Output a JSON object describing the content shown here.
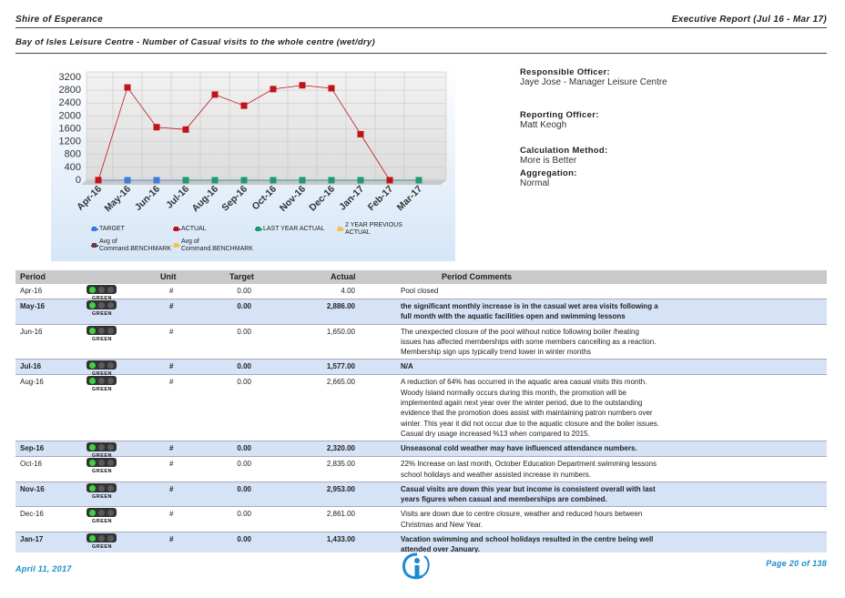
{
  "header": {
    "organisation": "Shire of Esperance",
    "report": "Executive Report (Jul 16 - Mar 17)"
  },
  "subtitle": "Bay of Isles Leisure Centre - Number of Casual visits to the whole centre (wet/dry)",
  "chart_data": {
    "type": "line",
    "categories": [
      "Apr-16",
      "May-16",
      "Jun-16",
      "Jul-16",
      "Aug-16",
      "Sep-16",
      "Oct-16",
      "Nov-16",
      "Dec-16",
      "Jan-17",
      "Feb-17",
      "Mar-17"
    ],
    "ylim": [
      0,
      3200
    ],
    "yticks": [
      0,
      400,
      800,
      1200,
      1600,
      2000,
      2400,
      2800,
      3200
    ],
    "grid": true,
    "series": [
      {
        "name": "TARGET",
        "color": "#3b7dd8",
        "values": [
          0,
          0,
          0,
          0,
          0,
          0,
          0,
          0,
          0,
          0,
          0,
          0
        ]
      },
      {
        "name": "LAST YEAR ACTUAL",
        "color": "#1e9a6e",
        "values": [
          null,
          null,
          null,
          0,
          0,
          0,
          0,
          0,
          0,
          0,
          0,
          0
        ]
      },
      {
        "name": "ACTUAL",
        "color": "#c0141a",
        "values": [
          4,
          2886,
          1650,
          1577,
          2665,
          2320,
          2835,
          2953,
          2861,
          1433,
          0,
          null
        ]
      },
      {
        "name": "2 YEAR PREVIOUS ACTUAL",
        "color": "#f5c24c",
        "values": [
          null,
          null,
          null,
          null,
          null,
          null,
          null,
          null,
          null,
          null,
          null,
          null
        ]
      },
      {
        "name": "Avg of Command.BENCHMARK",
        "color": "#6a3a4a",
        "values": [
          null,
          null,
          null,
          null,
          null,
          null,
          null,
          null,
          null,
          null,
          null,
          null
        ]
      },
      {
        "name": "Avg of Command.BENCHMARK",
        "color": "#f5c24c",
        "values": [
          null,
          null,
          null,
          null,
          null,
          null,
          null,
          null,
          null,
          null,
          null,
          null
        ]
      }
    ],
    "legend_order": [
      0,
      2,
      1,
      3,
      4,
      5
    ]
  },
  "info": [
    {
      "label": "Responsible Officer:",
      "value": "Jaye Jose - Manager Leisure Centre"
    },
    {
      "label": "Reporting Officer:",
      "value": "Matt Keogh"
    },
    {
      "label": "Calculation Method:",
      "value": "More is Better"
    },
    {
      "label": "Aggregation:",
      "value": "Normal"
    }
  ],
  "table": {
    "columns": [
      "Period",
      "Unit",
      "Target",
      "Actual",
      "Period Comments"
    ],
    "rows": [
      {
        "period": "Apr-16",
        "status": "GREEN",
        "unit": "#",
        "target": "0.00",
        "actual": "4.00",
        "comment": "Pool closed"
      },
      {
        "period": "May-16",
        "status": "GREEN",
        "unit": "#",
        "target": "0.00",
        "actual": "2,886.00",
        "comment": "the significant monthly increase is in the casual  wet area visits following a full month with  the aquatic facilities open and swimming lessons"
      },
      {
        "period": "Jun-16",
        "status": "GREEN",
        "unit": "#",
        "target": "0.00",
        "actual": "1,650.00",
        "comment": "The unexpected closure of the pool without notice following boiler /heating issues has affected memberships with some members cancelling as a reaction. Membership sign ups typically trend lower in winter months"
      },
      {
        "period": "Jul-16",
        "status": "GREEN",
        "unit": "#",
        "target": "0.00",
        "actual": "1,577.00",
        "comment": "N/A"
      },
      {
        "period": "Aug-16",
        "status": "GREEN",
        "unit": "#",
        "target": "0.00",
        "actual": "2,665.00",
        "comment": "A reduction of 64% has occurred in the aquatic area casual visits this month. Woody Island normally occurs during this month, the promotion will be implemented again next year over the winter period, due to the outstanding evidence that the promotion does assist with maintaining patron numbers over winter. This year it did not occur due to the aquatic closure and the boiler issues. Casual dry usage increased %13 when compared to 2015."
      },
      {
        "period": "Sep-16",
        "status": "GREEN",
        "unit": "#",
        "target": "0.00",
        "actual": "2,320.00",
        "comment": "Unseasonal cold weather may have influenced attendance numbers."
      },
      {
        "period": "Oct-16",
        "status": "GREEN",
        "unit": "#",
        "target": "0.00",
        "actual": "2,835.00",
        "comment": "22% Increase on last month, October Education Department swimming lessons school holidays  and weather assisted increase in numbers."
      },
      {
        "period": "Nov-16",
        "status": "GREEN",
        "unit": "#",
        "target": "0.00",
        "actual": "2,953.00",
        "comment": "Casual visits are down this year but income is consistent overall with last years figures when casual and memberships are combined."
      },
      {
        "period": "Dec-16",
        "status": "GREEN",
        "unit": "#",
        "target": "0.00",
        "actual": "2,861.00",
        "comment": "Visits are down due to centre closure, weather and reduced hours between Christmas and New Year."
      },
      {
        "period": "Jan-17",
        "status": "GREEN",
        "unit": "#",
        "target": "0.00",
        "actual": "1,433.00",
        "comment": "Vacation swimming and school holidays resulted in the centre being well attended over January."
      }
    ]
  },
  "footer": {
    "date": "April 11, 2017",
    "page": "Page 20 of 138"
  }
}
